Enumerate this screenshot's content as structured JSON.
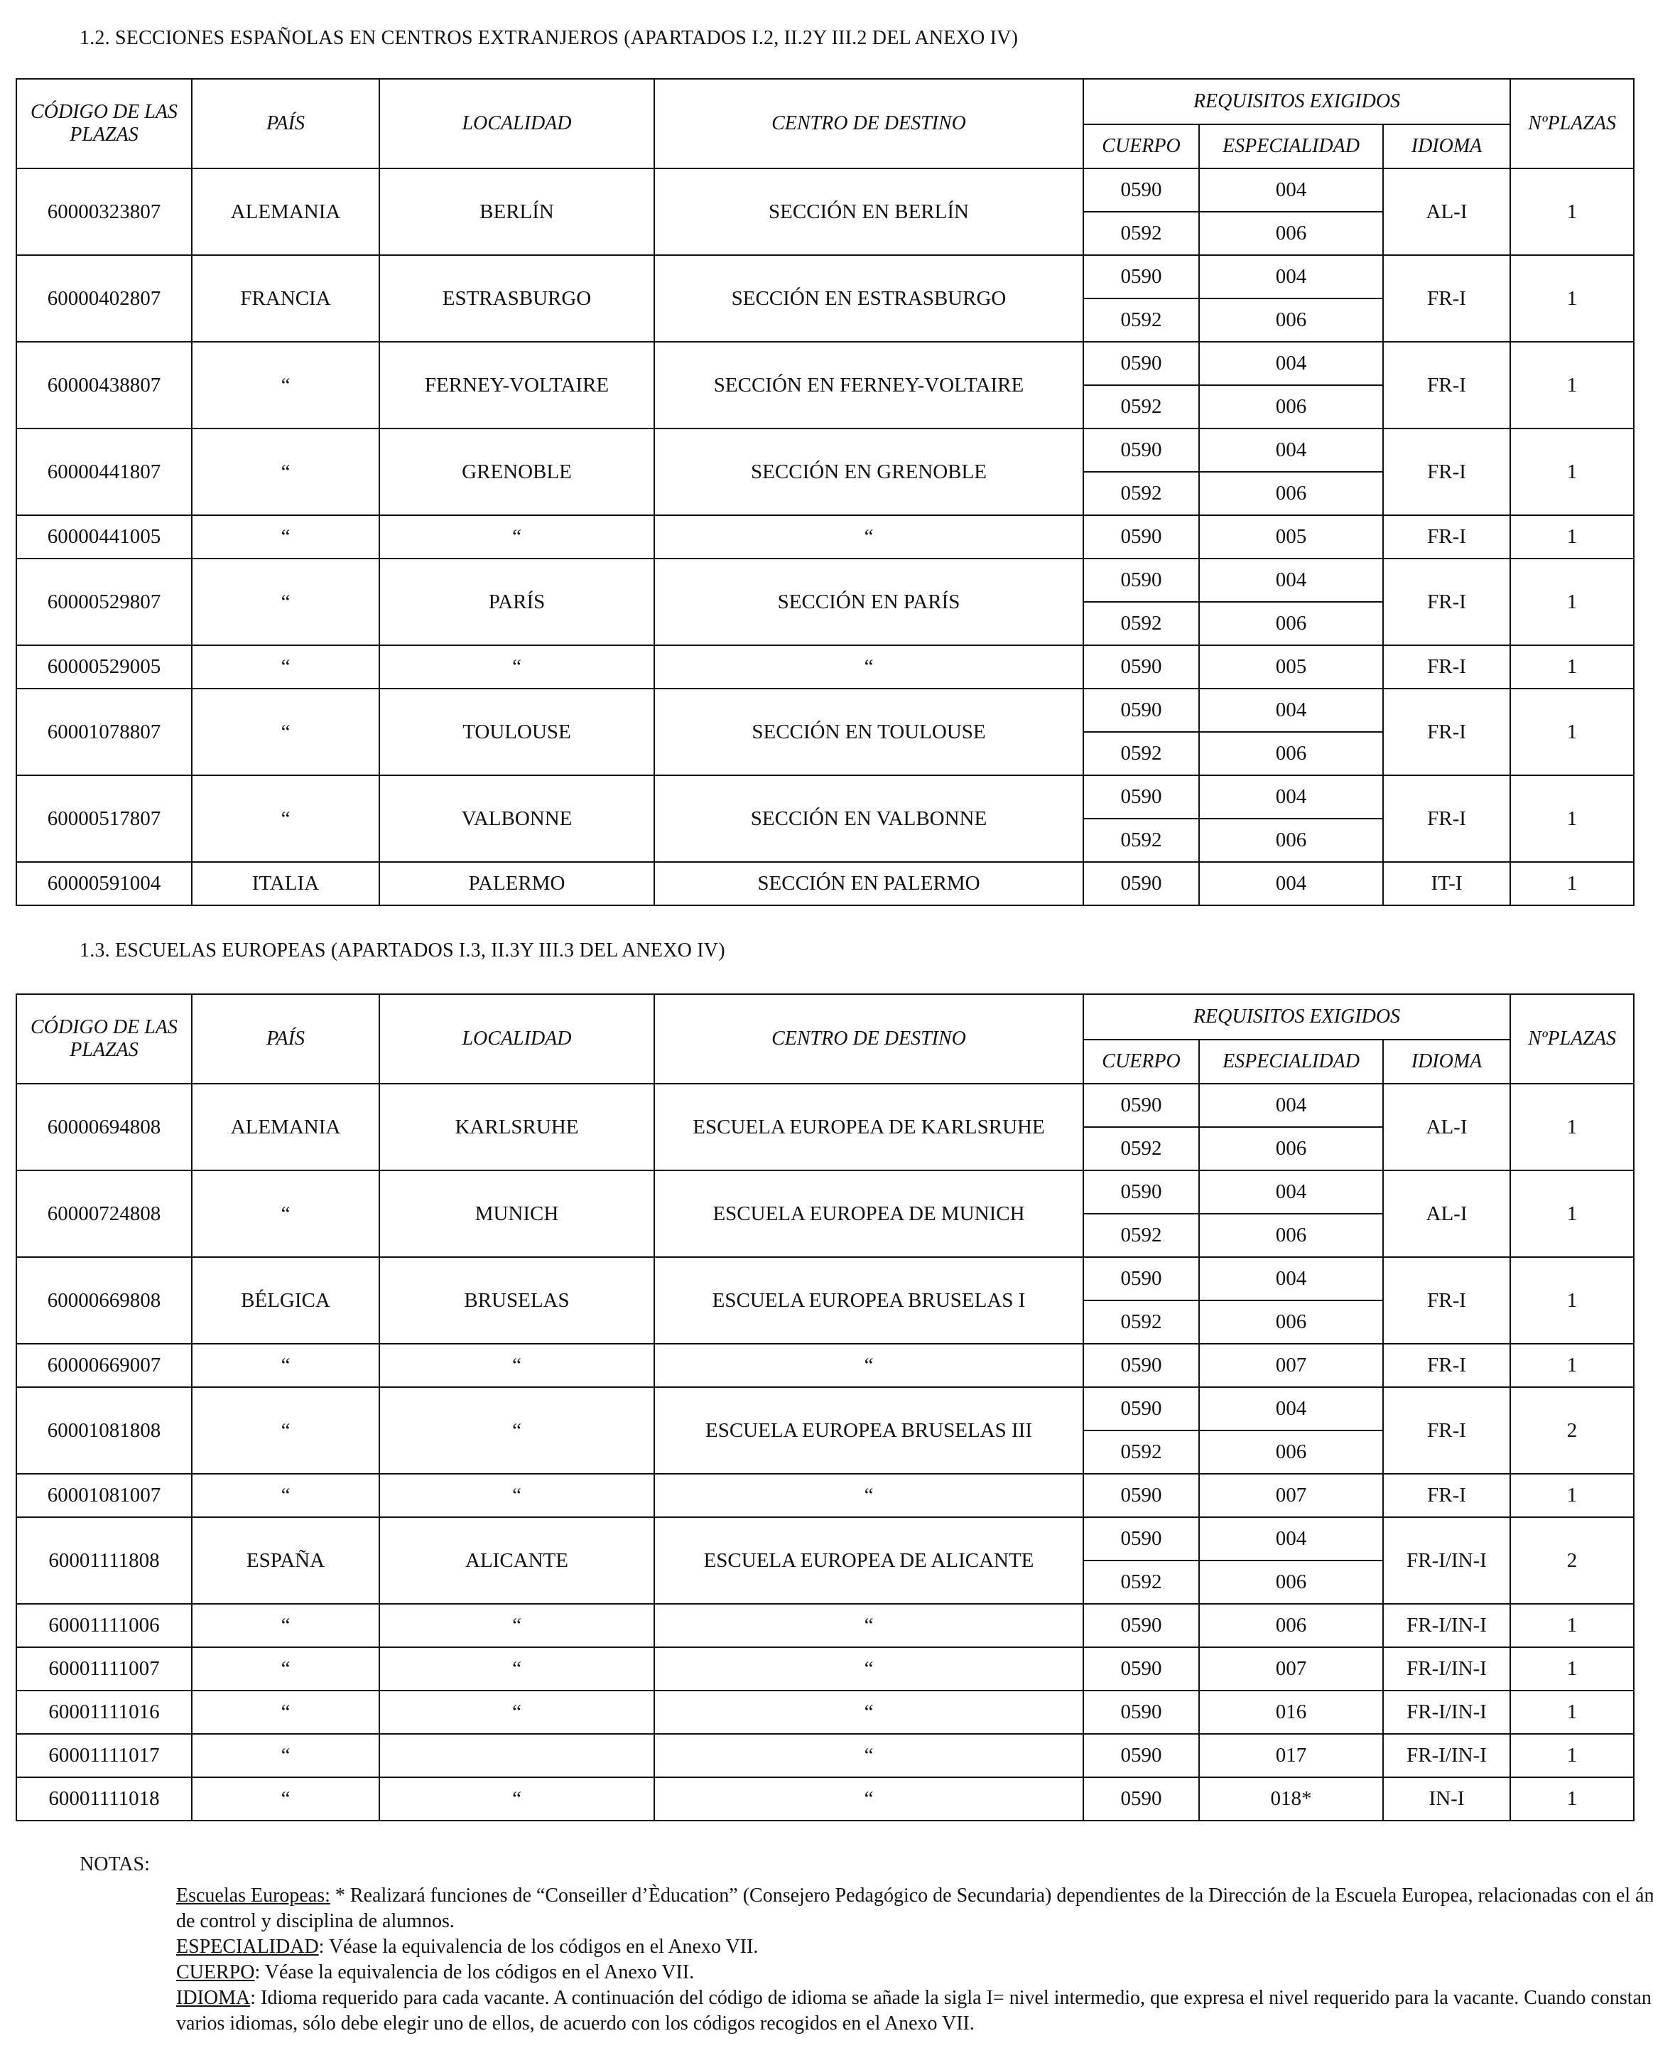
{
  "sections": [
    {
      "title": "1.2.  SECCIONES ESPAÑOLAS EN CENTROS EXTRANJEROS (APARTADOS I.2, II.2Y III.2 DEL ANEXO IV)",
      "rows": [
        {
          "codigo": "60000323807",
          "pais": "ALEMANIA",
          "localidad": "BERLÍN",
          "centro": "SECCIÓN EN BERLÍN",
          "reqs": [
            [
              "0590",
              "004"
            ],
            [
              "0592",
              "006"
            ]
          ],
          "idioma": "AL-I",
          "plazas": "1"
        },
        {
          "codigo": "60000402807",
          "pais": "FRANCIA",
          "localidad": "ESTRASBURGO",
          "centro": "SECCIÓN EN ESTRASBURGO",
          "reqs": [
            [
              "0590",
              "004"
            ],
            [
              "0592",
              "006"
            ]
          ],
          "idioma": "FR-I",
          "plazas": "1"
        },
        {
          "codigo": "60000438807",
          "pais": "“",
          "localidad": "FERNEY-VOLTAIRE",
          "centro": "SECCIÓN EN FERNEY-VOLTAIRE",
          "reqs": [
            [
              "0590",
              "004"
            ],
            [
              "0592",
              "006"
            ]
          ],
          "idioma": "FR-I",
          "plazas": "1"
        },
        {
          "codigo": "60000441807",
          "pais": "“",
          "localidad": "GRENOBLE",
          "centro": "SECCIÓN EN GRENOBLE",
          "reqs": [
            [
              "0590",
              "004"
            ],
            [
              "0592",
              "006"
            ]
          ],
          "idioma": "FR-I",
          "plazas": "1"
        },
        {
          "codigo": "60000441005",
          "pais": "“",
          "localidad": "“",
          "centro": "“",
          "reqs": [
            [
              "0590",
              "005"
            ]
          ],
          "idioma": "FR-I",
          "plazas": "1"
        },
        {
          "codigo": "60000529807",
          "pais": "“",
          "localidad": "PARÍS",
          "centro": "SECCIÓN EN PARÍS",
          "reqs": [
            [
              "0590",
              "004"
            ],
            [
              "0592",
              "006"
            ]
          ],
          "idioma": "FR-I",
          "plazas": "1"
        },
        {
          "codigo": "60000529005",
          "pais": "“",
          "localidad": "“",
          "centro": "“",
          "reqs": [
            [
              "0590",
              "005"
            ]
          ],
          "idioma": "FR-I",
          "plazas": "1"
        },
        {
          "codigo": "60001078807",
          "pais": "“",
          "localidad": "TOULOUSE",
          "centro": "SECCIÓN EN TOULOUSE",
          "reqs": [
            [
              "0590",
              "004"
            ],
            [
              "0592",
              "006"
            ]
          ],
          "idioma": "FR-I",
          "plazas": "1"
        },
        {
          "codigo": "60000517807",
          "pais": "“",
          "localidad": "VALBONNE",
          "centro": "SECCIÓN EN VALBONNE",
          "reqs": [
            [
              "0590",
              "004"
            ],
            [
              "0592",
              "006"
            ]
          ],
          "idioma": "FR-I",
          "plazas": "1"
        },
        {
          "codigo": "60000591004",
          "pais": "ITALIA",
          "localidad": "PALERMO",
          "centro": "SECCIÓN EN PALERMO",
          "reqs": [
            [
              "0590",
              "004"
            ]
          ],
          "idioma": "IT-I",
          "plazas": "1"
        }
      ]
    },
    {
      "title": "1.3.  ESCUELAS EUROPEAS (APARTADOS I.3, II.3Y III.3 DEL ANEXO IV)",
      "rows": [
        {
          "codigo": "60000694808",
          "pais": "ALEMANIA",
          "localidad": "KARLSRUHE",
          "centro": "ESCUELA EUROPEA DE KARLSRUHE",
          "reqs": [
            [
              "0590",
              "004"
            ],
            [
              "0592",
              "006"
            ]
          ],
          "idioma": "AL-I",
          "plazas": "1"
        },
        {
          "codigo": "60000724808",
          "pais": "“",
          "localidad": "MUNICH",
          "centro": "ESCUELA EUROPEA DE MUNICH",
          "reqs": [
            [
              "0590",
              "004"
            ],
            [
              "0592",
              "006"
            ]
          ],
          "idioma": "AL-I",
          "plazas": "1"
        },
        {
          "codigo": "60000669808",
          "pais": "BÉLGICA",
          "localidad": "BRUSELAS",
          "centro": "ESCUELA EUROPEA BRUSELAS I",
          "reqs": [
            [
              "0590",
              "004"
            ],
            [
              "0592",
              "006"
            ]
          ],
          "idioma": "FR-I",
          "plazas": "1"
        },
        {
          "codigo": "60000669007",
          "pais": "“",
          "localidad": "“",
          "centro": "“",
          "reqs": [
            [
              "0590",
              "007"
            ]
          ],
          "idioma": "FR-I",
          "plazas": "1"
        },
        {
          "codigo": "60001081808",
          "pais": "“",
          "localidad": "“",
          "centro": "ESCUELA EUROPEA BRUSELAS III",
          "reqs": [
            [
              "0590",
              "004"
            ],
            [
              "0592",
              "006"
            ]
          ],
          "idioma": "FR-I",
          "plazas": "2"
        },
        {
          "codigo": "60001081007",
          "pais": "“",
          "localidad": "“",
          "centro": "“",
          "reqs": [
            [
              "0590",
              "007"
            ]
          ],
          "idioma": "FR-I",
          "plazas": "1"
        },
        {
          "codigo": "60001111808",
          "pais": "ESPAÑA",
          "localidad": "ALICANTE",
          "centro": "ESCUELA EUROPEA DE ALICANTE",
          "reqs": [
            [
              "0590",
              "004"
            ],
            [
              "0592",
              "006"
            ]
          ],
          "idioma": "FR-I/IN-I",
          "plazas": "2"
        },
        {
          "codigo": "60001111006",
          "pais": "“",
          "localidad": "“",
          "centro": "“",
          "reqs": [
            [
              "0590",
              "006"
            ]
          ],
          "idioma": "FR-I/IN-I",
          "plazas": "1"
        },
        {
          "codigo": "60001111007",
          "pais": "“",
          "localidad": "“",
          "centro": "“",
          "reqs": [
            [
              "0590",
              "007"
            ]
          ],
          "idioma": "FR-I/IN-I",
          "plazas": "1"
        },
        {
          "codigo": "60001111016",
          "pais": "“",
          "localidad": "“",
          "centro": "“",
          "reqs": [
            [
              "0590",
              "016"
            ]
          ],
          "idioma": "FR-I/IN-I",
          "plazas": "1"
        },
        {
          "codigo": "60001111017",
          "pais": "“",
          "localidad": "",
          "centro": "“",
          "reqs": [
            [
              "0590",
              "017"
            ]
          ],
          "idioma": "FR-I/IN-I",
          "plazas": "1"
        },
        {
          "codigo": "60001111018",
          "pais": "“",
          "localidad": "“",
          "centro": "“",
          "reqs": [
            [
              "0590",
              "018*"
            ]
          ],
          "idioma": "IN-I",
          "plazas": "1"
        }
      ]
    }
  ],
  "headers": {
    "codigo": "CÓDIGO DE LAS PLAZAS",
    "pais": "PAÍS",
    "localidad": "LOCALIDAD",
    "centro": "CENTRO DE DESTINO",
    "requisitos": "REQUISITOS EXIGIDOS",
    "cuerpo": "CUERPO",
    "especialidad": "ESPECIALIDAD",
    "idioma": "IDIOMA",
    "plazas": "NºPLAZAS"
  },
  "notes": {
    "heading": "NOTAS:",
    "items": [
      {
        "label": "Escuelas Europeas:",
        "text": " * Realizará funciones de “Conseiller d’Èducation” (Consejero Pedagógico de Secundaria) dependientes de la Dirección de la Escuela Europea, relacionadas con el ámbito de control y disciplina de alumnos."
      },
      {
        "label": "ESPECIALIDAD",
        "text": ": Véase la equivalencia de los códigos en el Anexo VII."
      },
      {
        "label": "CUERPO",
        "text": ": Véase la equivalencia de los códigos en el Anexo VII."
      },
      {
        "label": "IDIOMA",
        "text": ": Idioma requerido para cada vacante. A continuación del código de idioma se añade la sigla I= nivel intermedio, que expresa el nivel requerido para la vacante. Cuando constan varios idiomas, sólo debe elegir uno de ellos, de acuerdo con los códigos recogidos en el Anexo VII."
      }
    ]
  }
}
